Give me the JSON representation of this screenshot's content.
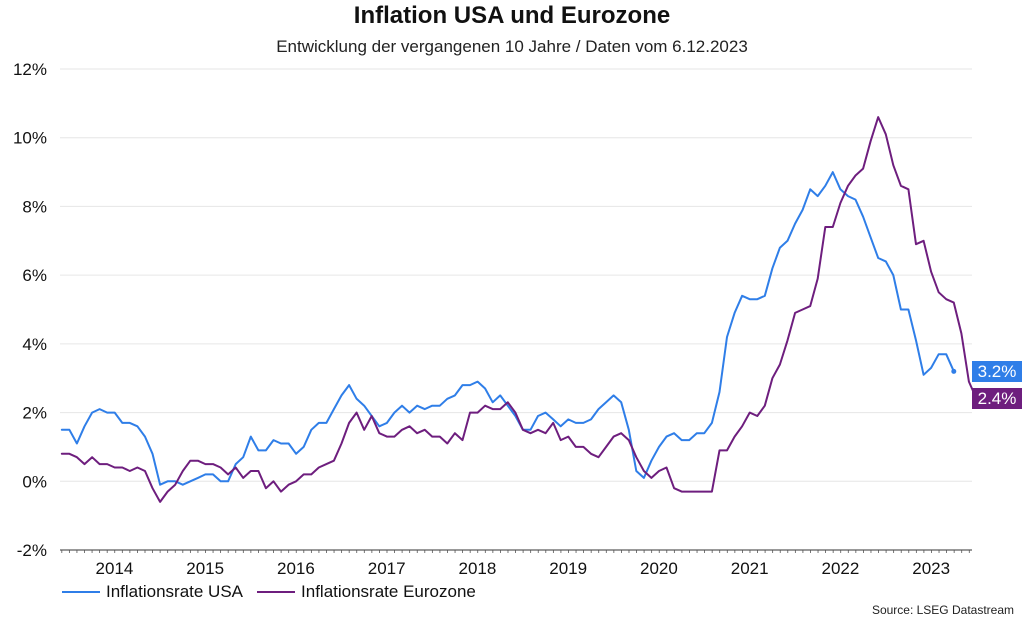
{
  "chart_data": {
    "type": "line",
    "title": "Inflation USA und Eurozone",
    "subtitle": "Entwicklung der vergangenen 10 Jahre / Daten vom 6.12.2023",
    "ylim": [
      -2,
      12
    ],
    "y_ticks": [
      "-2%",
      "0%",
      "2%",
      "4%",
      "6%",
      "8%",
      "10%",
      "12%"
    ],
    "y_tick_values": [
      -2,
      0,
      2,
      4,
      6,
      8,
      10,
      12
    ],
    "x_ticks": [
      "2014",
      "2015",
      "2016",
      "2017",
      "2018",
      "2019",
      "2020",
      "2021",
      "2022",
      "2023"
    ],
    "x_tick_values": [
      2014.5,
      2015.5,
      2016.5,
      2017.5,
      2018.5,
      2019.5,
      2020.5,
      2021.5,
      2022.5,
      2023.5
    ],
    "x_start": 2013.92,
    "x_step": 0.0833,
    "grid": true,
    "legend_position": "bottom-left",
    "source": "Source: LSEG Datastream",
    "series": [
      {
        "name": "Inflationsrate USA",
        "color": "#2f7ee8",
        "end_label": "3.2%",
        "values": [
          1.5,
          1.5,
          1.1,
          1.6,
          2.0,
          2.1,
          2.0,
          2.0,
          1.7,
          1.7,
          1.6,
          1.3,
          0.8,
          -0.1,
          0.0,
          0.0,
          -0.1,
          0.0,
          0.1,
          0.2,
          0.2,
          0.0,
          0.0,
          0.5,
          0.7,
          1.3,
          0.9,
          0.9,
          1.2,
          1.1,
          1.1,
          0.8,
          1.0,
          1.5,
          1.7,
          1.7,
          2.1,
          2.5,
          2.8,
          2.4,
          2.2,
          1.9,
          1.6,
          1.7,
          2.0,
          2.2,
          2.0,
          2.2,
          2.1,
          2.2,
          2.2,
          2.4,
          2.5,
          2.8,
          2.8,
          2.9,
          2.7,
          2.3,
          2.5,
          2.2,
          1.9,
          1.5,
          1.5,
          1.9,
          2.0,
          1.8,
          1.6,
          1.8,
          1.7,
          1.7,
          1.8,
          2.1,
          2.3,
          2.5,
          2.3,
          1.5,
          0.3,
          0.1,
          0.6,
          1.0,
          1.3,
          1.4,
          1.2,
          1.2,
          1.4,
          1.4,
          1.7,
          2.6,
          4.2,
          4.9,
          5.4,
          5.3,
          5.3,
          5.4,
          6.2,
          6.8,
          7.0,
          7.5,
          7.9,
          8.5,
          8.3,
          8.6,
          9.0,
          8.5,
          8.3,
          8.2,
          7.7,
          7.1,
          6.5,
          6.4,
          6.0,
          5.0,
          5.0,
          4.1,
          3.1,
          3.3,
          3.7,
          3.7,
          3.2
        ]
      },
      {
        "name": "Inflationsrate Eurozone",
        "color": "#6e1e7e",
        "end_label": "2.4%",
        "values": [
          0.8,
          0.8,
          0.7,
          0.5,
          0.7,
          0.5,
          0.5,
          0.4,
          0.4,
          0.3,
          0.4,
          0.3,
          -0.2,
          -0.6,
          -0.3,
          -0.1,
          0.3,
          0.6,
          0.6,
          0.5,
          0.5,
          0.4,
          0.2,
          0.4,
          0.1,
          0.3,
          0.3,
          -0.2,
          0.0,
          -0.3,
          -0.1,
          0.0,
          0.2,
          0.2,
          0.4,
          0.5,
          0.6,
          1.1,
          1.7,
          2.0,
          1.5,
          1.9,
          1.4,
          1.3,
          1.3,
          1.5,
          1.6,
          1.4,
          1.5,
          1.3,
          1.3,
          1.1,
          1.4,
          1.2,
          2.0,
          2.0,
          2.2,
          2.1,
          2.1,
          2.3,
          2.0,
          1.5,
          1.4,
          1.5,
          1.4,
          1.7,
          1.2,
          1.3,
          1.0,
          1.0,
          0.8,
          0.7,
          1.0,
          1.3,
          1.4,
          1.2,
          0.7,
          0.3,
          0.1,
          0.3,
          0.4,
          -0.2,
          -0.3,
          -0.3,
          -0.3,
          -0.3,
          -0.3,
          0.9,
          0.9,
          1.3,
          1.6,
          2.0,
          1.9,
          2.2,
          3.0,
          3.4,
          4.1,
          4.9,
          5.0,
          5.1,
          5.9,
          7.4,
          7.4,
          8.1,
          8.6,
          8.9,
          9.1,
          9.9,
          10.6,
          10.1,
          9.2,
          8.6,
          8.5,
          6.9,
          7.0,
          6.1,
          5.5,
          5.3,
          5.2,
          4.3,
          2.9,
          2.4
        ]
      }
    ]
  }
}
